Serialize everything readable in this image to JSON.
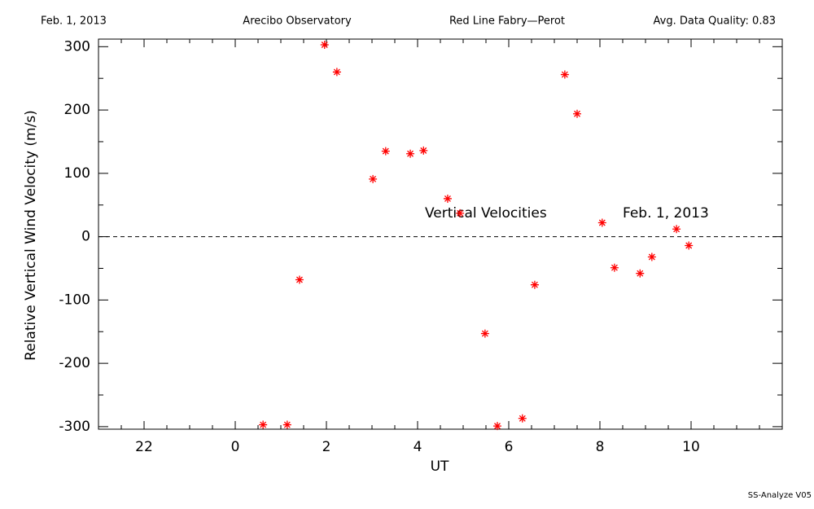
{
  "chart_data": {
    "type": "scatter",
    "header": {
      "date": "Feb. 1, 2013",
      "site": "Arecibo Observatory",
      "instrument": "Red Line Fabry—Perot",
      "quality": "Avg. Data Quality: 0.83"
    },
    "annotations": [
      "Vertical Velocities",
      "Feb. 1, 2013"
    ],
    "footer": "SS-Analyze V05",
    "x_label": "UT",
    "y_label": "Relative Vertical Wind Velocity (m/s)",
    "color": "#ff0000",
    "marker": "asterisk",
    "reference_line": 0,
    "x": [
      0.61,
      1.14,
      1.41,
      1.96,
      2.23,
      3.02,
      3.3,
      3.84,
      4.13,
      4.66,
      4.93,
      5.48,
      5.75,
      6.3,
      6.57,
      7.23,
      7.5,
      8.05,
      8.32,
      8.88,
      9.14,
      9.68,
      9.95
    ],
    "values": [
      -297,
      -297,
      -68,
      303,
      260,
      91,
      135,
      131,
      136,
      60,
      37,
      -153,
      -299,
      -287,
      -76,
      256,
      194,
      22,
      -49,
      -58,
      -32,
      12,
      -14
    ],
    "xlim": [
      -3,
      12
    ],
    "xticks": [
      {
        "value": -2,
        "label": "22"
      },
      0,
      2,
      4,
      6,
      8,
      10
    ],
    "ylim": [
      -304,
      312
    ],
    "yticks": [
      -300,
      -200,
      -100,
      0,
      100,
      200,
      300
    ]
  }
}
